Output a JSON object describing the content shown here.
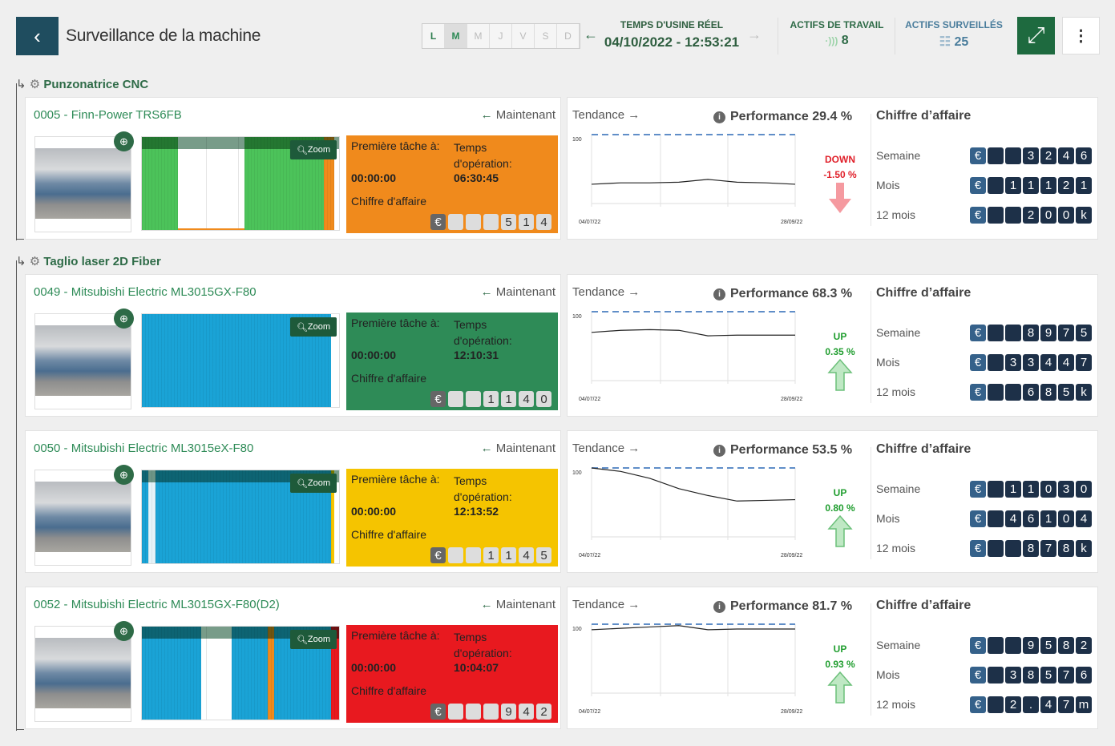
{
  "header": {
    "title": "Surveillance de la machine",
    "days": [
      "L",
      "M",
      "M",
      "J",
      "V",
      "S",
      "D"
    ],
    "factory_time_label": "TEMPS D'USINE RÉEL",
    "factory_time": "04/10/2022 - 12:53:21",
    "work_assets_label": "ACTIFS DE TRAVAIL",
    "work_assets": "8",
    "monitored_assets_label": "ACTIFS SURVEILLÉS",
    "monitored_assets": "25",
    "colors": {
      "primary": "#1e6a3f",
      "back": "#1f4d5f"
    }
  },
  "labels": {
    "now": "Maintenant",
    "first_task": "Première tâche à:",
    "op_time": "Temps d'opération:",
    "revenue": "Chiffre d'affaire",
    "trend": "Tendance",
    "perf": "Performance",
    "zoom": "Zoom",
    "revenue_title": "Chiffre d’affaire",
    "week": "Semaine",
    "month": "Mois",
    "year": "12 mois",
    "euro": "€",
    "chart_max": "100",
    "date_start": "04/07/22",
    "date_end": "28/09/22"
  },
  "groups": [
    {
      "name": "Punzonatrice CNC",
      "machines": [
        0
      ]
    },
    {
      "name": "Taglio laser 2D Fiber",
      "machines": [
        1,
        2,
        3
      ]
    }
  ],
  "machines": [
    {
      "name": "0005 - Finn-Power TRS6FB",
      "status_color": "#f08a1c",
      "first_task": "00:00:00",
      "op_time": "06:30:45",
      "revenue_digits": [
        "",
        "",
        "",
        "5",
        "1",
        "4"
      ],
      "performance": "29.4 %",
      "trend_dir": "DOWN",
      "trend_value": "-1.50 %",
      "trend_color": "#e0202a",
      "trend_series": [
        28,
        30,
        30,
        31,
        35,
        31,
        30,
        28
      ],
      "week": [
        "",
        "",
        "3",
        "2",
        "4",
        "6"
      ],
      "month": [
        "",
        "1",
        "1",
        "1",
        "2",
        "1"
      ],
      "year": [
        "",
        "",
        "2",
        "0",
        "0",
        "k"
      ]
    },
    {
      "name": "0049 - Mitsubishi Electric ML3015GX-F80",
      "status_color": "#2e8b57",
      "first_task": "00:00:00",
      "op_time": "12:10:31",
      "revenue_digits": [
        "",
        "",
        "1",
        "1",
        "4",
        "0"
      ],
      "performance": "68.3 %",
      "trend_dir": "UP",
      "trend_value": "0.35 %",
      "trend_color": "#1f9d2e",
      "trend_series": [
        70,
        73,
        74,
        73,
        65,
        66,
        66,
        66
      ],
      "week": [
        "",
        "",
        "8",
        "9",
        "7",
        "5"
      ],
      "month": [
        "",
        "3",
        "3",
        "4",
        "4",
        "7"
      ],
      "year": [
        "",
        "",
        "6",
        "8",
        "5",
        "k"
      ]
    },
    {
      "name": "0050 - Mitsubishi Electric ML3015eX-F80",
      "status_color": "#f5c400",
      "first_task": "00:00:00",
      "op_time": "12:13:52",
      "revenue_digits": [
        "",
        "",
        "1",
        "1",
        "4",
        "5"
      ],
      "performance": "53.5 %",
      "trend_dir": "UP",
      "trend_value": "0.80 %",
      "trend_color": "#1f9d2e",
      "trend_series": [
        100,
        95,
        85,
        70,
        60,
        52,
        53,
        54
      ],
      "week": [
        "",
        "1",
        "1",
        "0",
        "3",
        "0"
      ],
      "month": [
        "",
        "4",
        "6",
        "1",
        "0",
        "4"
      ],
      "year": [
        "",
        "",
        "8",
        "7",
        "8",
        "k"
      ]
    },
    {
      "name": "0052 - Mitsubishi Electric ML3015GX-F80(D2)",
      "status_color": "#e8191f",
      "first_task": "00:00:00",
      "op_time": "10:04:07",
      "revenue_digits": [
        "",
        "",
        "",
        "9",
        "4",
        "2"
      ],
      "performance": "81.7 %",
      "trend_dir": "UP",
      "trend_value": "0.93 %",
      "trend_color": "#1f9d2e",
      "trend_series": [
        92,
        94,
        96,
        98,
        92,
        93,
        93,
        93
      ],
      "week": [
        "",
        "",
        "9",
        "5",
        "8",
        "2"
      ],
      "month": [
        "",
        "3",
        "8",
        "5",
        "7",
        "6"
      ],
      "year": [
        "",
        "2",
        ".",
        "4",
        "7",
        "m"
      ]
    }
  ]
}
